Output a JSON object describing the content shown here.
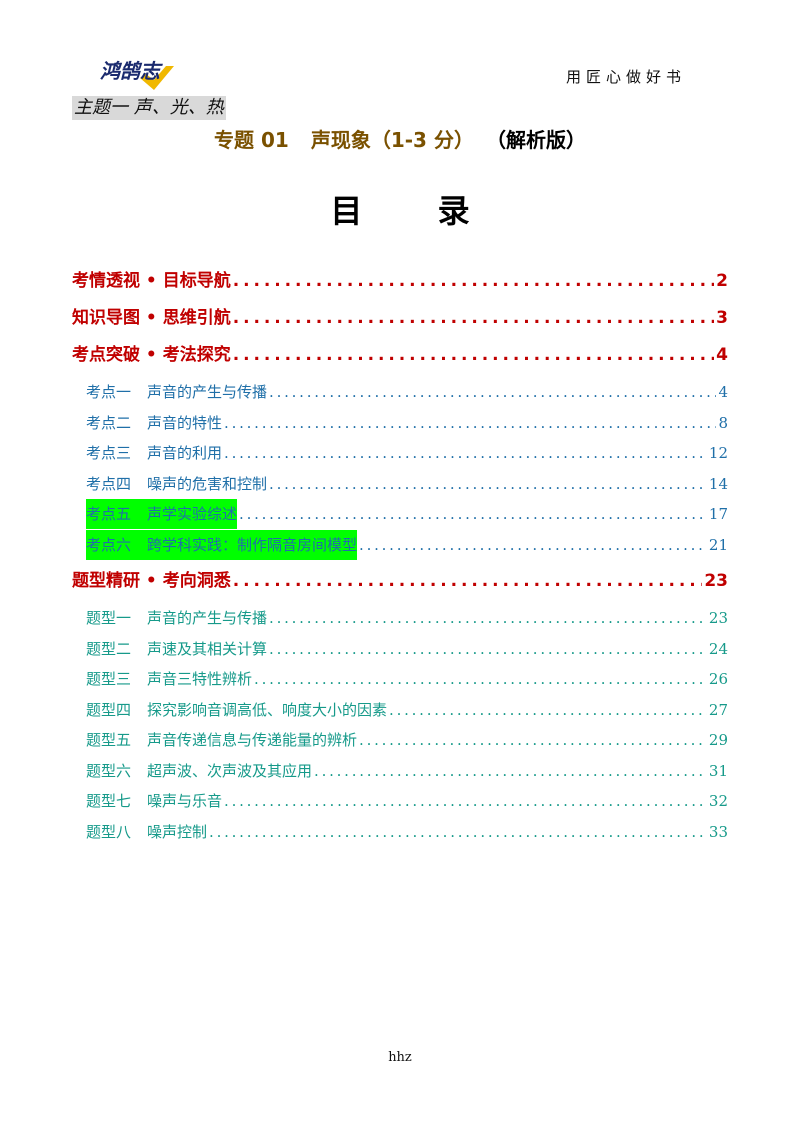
{
  "header": {
    "logo_text": "鸿鹄志",
    "slogan": "用匠心做好书",
    "theme_tag": "主题一 声、光、热"
  },
  "title": {
    "code": "专题 01",
    "name": "声现象（1-3 分）",
    "version": "（解析版）"
  },
  "toc_heading": "目 录",
  "toc": {
    "s1": {
      "label": "考情透视 • 目标导航",
      "page": "2"
    },
    "s2": {
      "label": "知识导图 • 思维引航",
      "page": "3"
    },
    "s3": {
      "label": "考点突破 • 考法探究",
      "page": "4",
      "items": [
        {
          "num": "考点一",
          "title": "声音的产生与传播",
          "page": "4"
        },
        {
          "num": "考点二",
          "title": "声音的特性",
          "page": "8"
        },
        {
          "num": "考点三",
          "title": "声音的利用",
          "page": "12"
        },
        {
          "num": "考点四",
          "title": "噪声的危害和控制",
          "page": "14"
        },
        {
          "num": "考点五",
          "title": "声学实验综述",
          "page": "17"
        },
        {
          "num": "考点六",
          "title": "跨学科实践：制作隔音房间模型",
          "page": "21"
        }
      ]
    },
    "s4": {
      "label": "题型精研 • 考向洞悉",
      "page": "23",
      "items": [
        {
          "num": "题型一",
          "title": "声音的产生与传播",
          "page": "23"
        },
        {
          "num": "题型二",
          "title": "声速及其相关计算",
          "page": "24"
        },
        {
          "num": "题型三",
          "title": "声音三特性辨析",
          "page": "26"
        },
        {
          "num": "题型四",
          "title": "探究影响音调高低、响度大小的因素",
          "page": "27"
        },
        {
          "num": "题型五",
          "title": "声音传递信息与传递能量的辨析",
          "page": "29"
        },
        {
          "num": "题型六",
          "title": "超声波、次声波及其应用",
          "page": "31"
        },
        {
          "num": "题型七",
          "title": "噪声与乐音",
          "page": "32"
        },
        {
          "num": "题型八",
          "title": "噪声控制",
          "page": "33"
        }
      ]
    }
  },
  "footer": "hhz",
  "colors": {
    "section_red": "#c00000",
    "topic_blue": "#1f6fa8",
    "type_teal": "#169a8a",
    "highlight": "#00ff00",
    "title_brown": "#7a5100"
  }
}
